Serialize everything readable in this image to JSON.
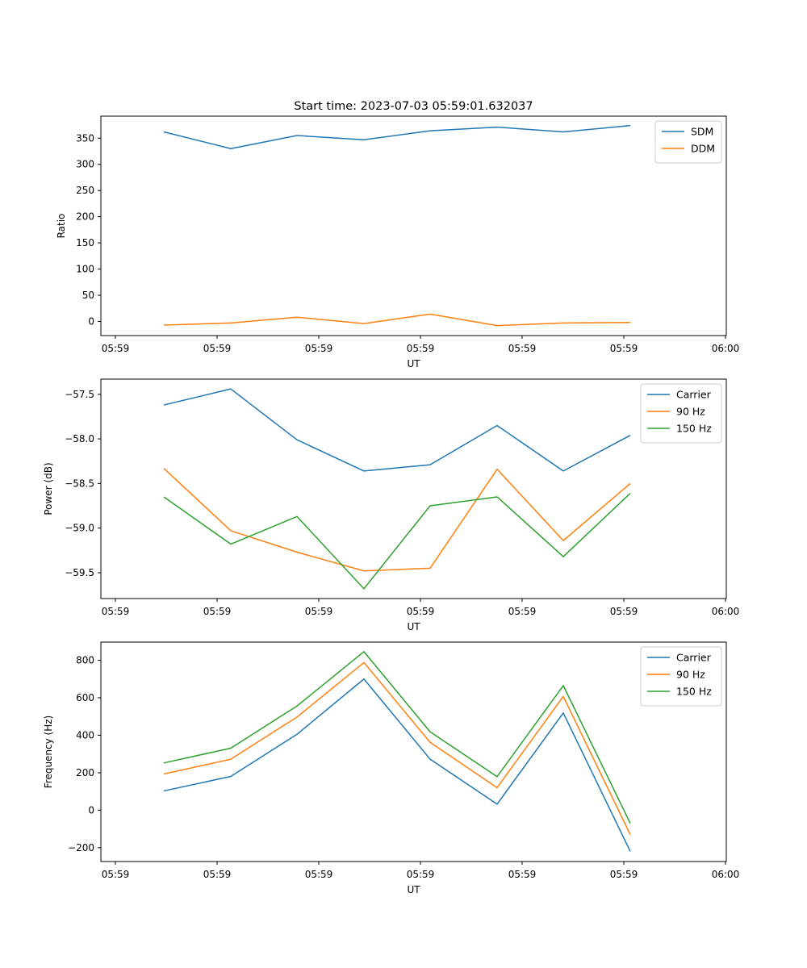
{
  "chart_data": [
    {
      "type": "line",
      "title": "Start time: 2023-07-03 05:59:01.632037",
      "xlabel": "UT",
      "ylabel": "Ratio",
      "x_tick_labels": [
        "05:59",
        "05:59",
        "05:59",
        "05:59",
        "05:59",
        "05:59",
        "06:00"
      ],
      "ylim": [
        -27,
        392
      ],
      "y_ticks": [
        0,
        50,
        100,
        150,
        200,
        250,
        300,
        350
      ],
      "y_tick_labels": [
        "0",
        "50",
        "100",
        "150",
        "200",
        "250",
        "300",
        "350"
      ],
      "legend_position": "top-right",
      "series": [
        {
          "name": "SDM",
          "color": "#1f77b4",
          "values": [
            362,
            330,
            355,
            347,
            364,
            371,
            362,
            374
          ]
        },
        {
          "name": "DDM",
          "color": "#ff7f0e",
          "values": [
            -7,
            -3,
            8,
            -4,
            14,
            -8,
            -3,
            -2
          ]
        }
      ]
    },
    {
      "type": "line",
      "title": "",
      "xlabel": "UT",
      "ylabel": "Power (dB)",
      "x_tick_labels": [
        "05:59",
        "05:59",
        "05:59",
        "05:59",
        "05:59",
        "05:59",
        "06:00"
      ],
      "ylim": [
        -59.79,
        -57.33
      ],
      "y_ticks": [
        -57.5,
        -58.0,
        -58.5,
        -59.0,
        -59.5
      ],
      "y_tick_labels": [
        "−57.5",
        "−58.0",
        "−58.5",
        "−59.0",
        "−59.5"
      ],
      "legend_position": "top-right",
      "series": [
        {
          "name": "Carrier",
          "color": "#1f77b4",
          "values": [
            -57.62,
            -57.44,
            -58.01,
            -58.36,
            -58.29,
            -57.85,
            -58.36,
            -57.96
          ]
        },
        {
          "name": "90 Hz",
          "color": "#ff7f0e",
          "values": [
            -58.33,
            -59.03,
            -59.27,
            -59.48,
            -59.45,
            -58.34,
            -59.14,
            -58.5
          ]
        },
        {
          "name": "150 Hz",
          "color": "#2ca02c",
          "values": [
            -58.65,
            -59.18,
            -58.87,
            -59.68,
            -58.75,
            -58.65,
            -59.32,
            -58.61
          ]
        }
      ]
    },
    {
      "type": "line",
      "title": "",
      "xlabel": "UT",
      "ylabel": "Frequency (Hz)",
      "x_tick_labels": [
        "05:59",
        "05:59",
        "05:59",
        "05:59",
        "05:59",
        "05:59",
        "06:00"
      ],
      "ylim": [
        -274,
        897
      ],
      "y_ticks": [
        -200,
        0,
        200,
        400,
        600,
        800
      ],
      "y_tick_labels": [
        "−200",
        "0",
        "200",
        "400",
        "600",
        "800"
      ],
      "legend_position": "top-right",
      "series": [
        {
          "name": "Carrier",
          "color": "#1f77b4",
          "values": [
            103,
            180,
            405,
            700,
            272,
            32,
            519,
            -220
          ]
        },
        {
          "name": "90 Hz",
          "color": "#ff7f0e",
          "values": [
            193,
            272,
            497,
            788,
            362,
            120,
            607,
            -130
          ]
        },
        {
          "name": "150 Hz",
          "color": "#2ca02c",
          "values": [
            252,
            331,
            556,
            846,
            418,
            179,
            665,
            -70
          ]
        }
      ]
    }
  ]
}
